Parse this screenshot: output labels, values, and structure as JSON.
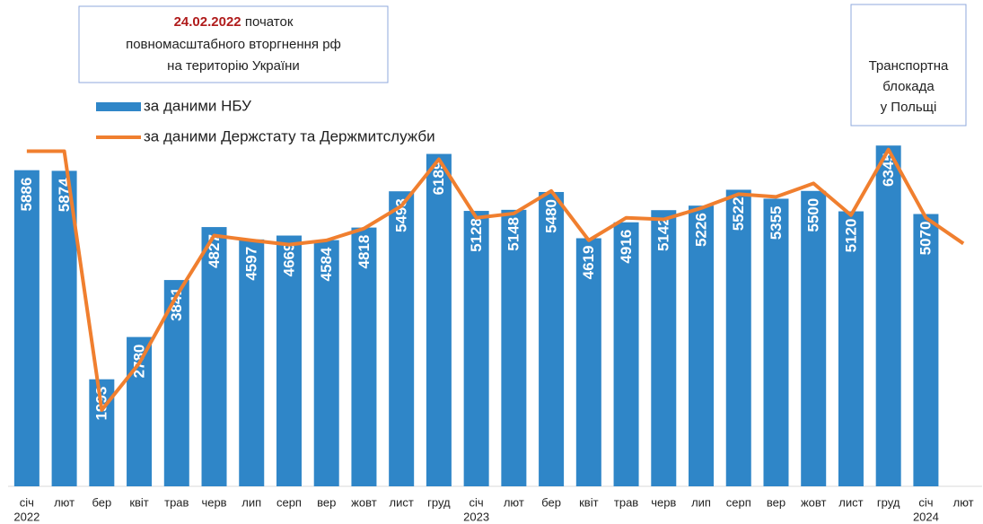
{
  "chart_data": {
    "type": "bar_line",
    "categories": [
      [
        "січ",
        "2022"
      ],
      "лют",
      "бер",
      "квіт",
      "трав",
      "черв",
      "лип",
      "серп",
      "вер",
      "жовт",
      "лист",
      "груд",
      [
        "січ",
        "2023"
      ],
      "лют",
      "бер",
      "квіт",
      "трав",
      "черв",
      "лип",
      "серп",
      "вер",
      "жовт",
      "лист",
      "груд",
      [
        "січ",
        "2024"
      ],
      "лют"
    ],
    "series": [
      {
        "name": "за даними НБУ",
        "type": "bar",
        "color": "#2f86c8",
        "values": [
          5886,
          5874,
          1993,
          2780,
          3841,
          4827,
          4597,
          4669,
          4584,
          4818,
          5493,
          6189,
          5128,
          5148,
          5480,
          4619,
          4916,
          5142,
          5226,
          5522,
          5355,
          5500,
          5120,
          6345,
          5070,
          null
        ]
      },
      {
        "name": "за даними Держстату та Держмитслужби",
        "type": "line",
        "color": "#f07f2f",
        "values": [
          6240,
          6240,
          1420,
          2290,
          3550,
          4670,
          4580,
          4500,
          4580,
          4800,
          5220,
          6090,
          5000,
          5080,
          5500,
          4580,
          5000,
          4970,
          5180,
          5440,
          5390,
          5640,
          5050,
          6270,
          5000,
          4520
        ]
      }
    ],
    "ylim": [
      0,
      7000
    ],
    "annotations": [
      {
        "lines": [
          [
            "24.02.2022",
            " початок"
          ],
          "повномасштабного вторгнення рф",
          "на територію України"
        ]
      },
      {
        "lines": [
          "Транспортна",
          "блокада",
          "у Польщі"
        ]
      }
    ]
  }
}
